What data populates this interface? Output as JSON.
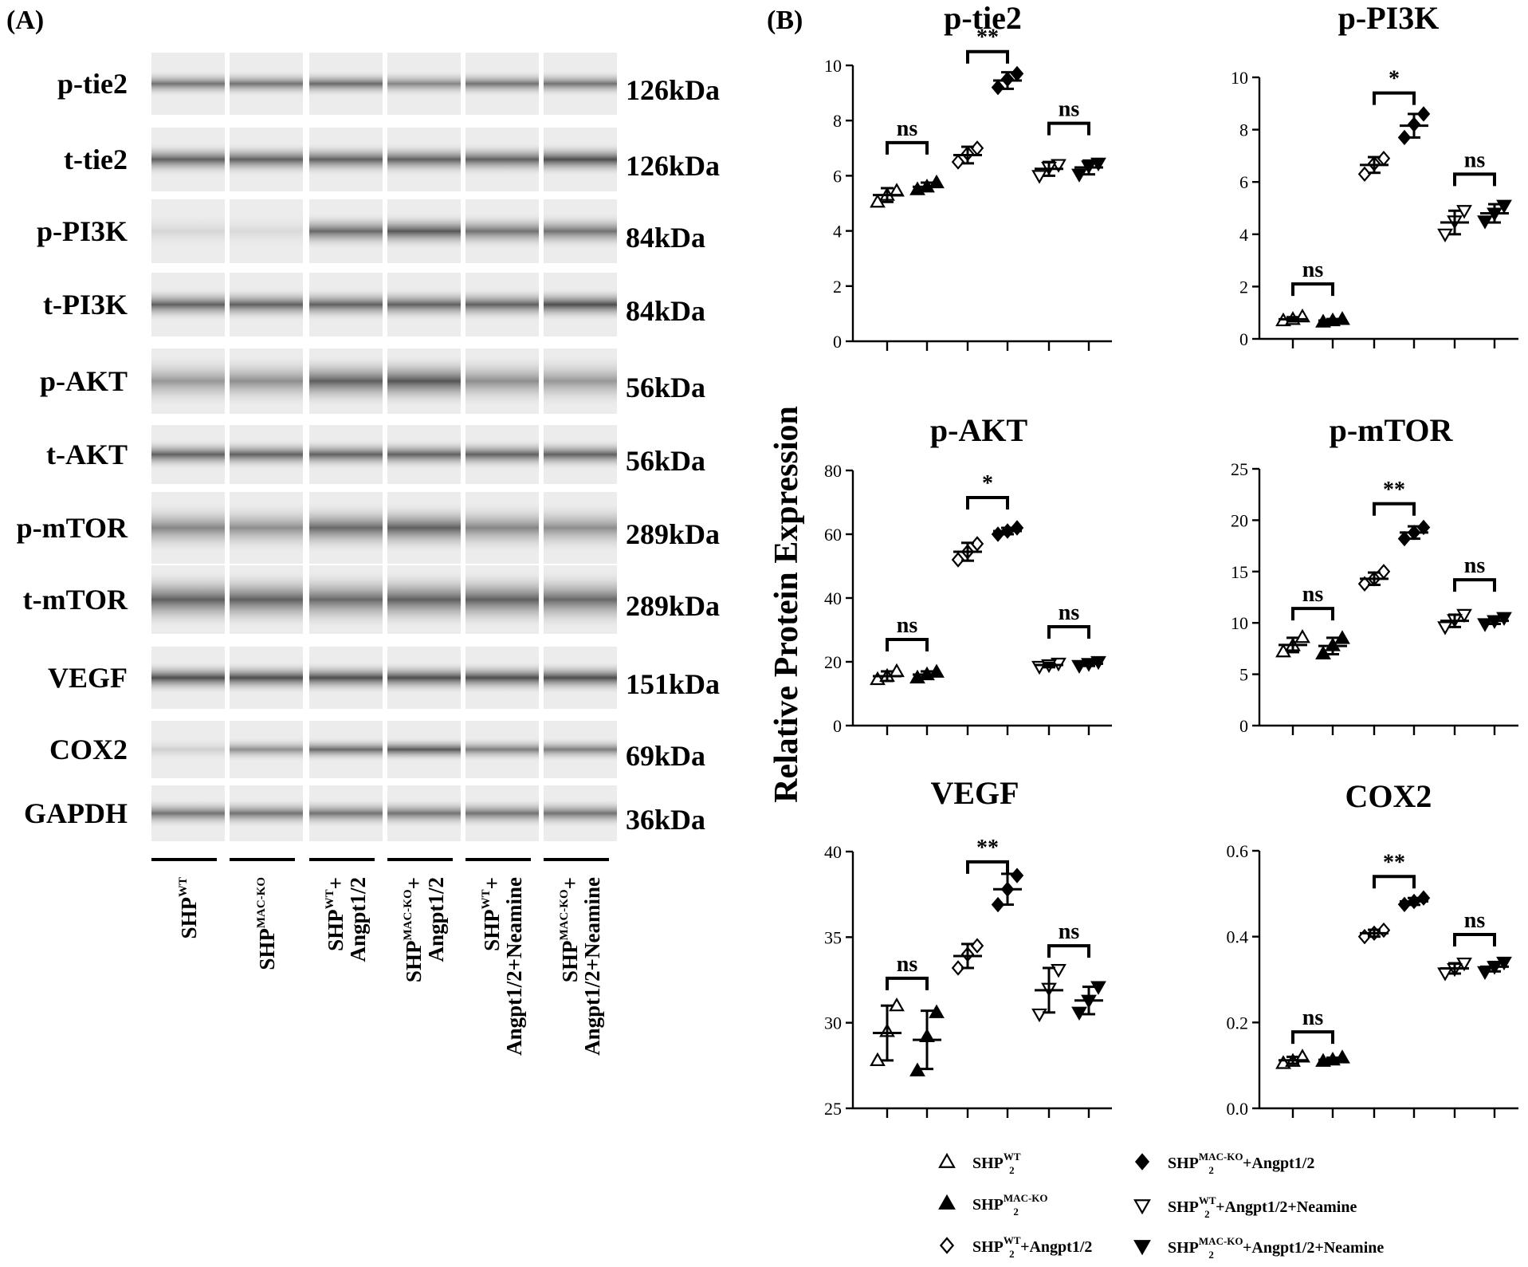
{
  "panel_a": {
    "label": "(A)",
    "rows": [
      {
        "name": "p-tie2",
        "kda": "126kDa"
      },
      {
        "name": "t-tie2",
        "kda": "126kDa"
      },
      {
        "name": "p-PI3K",
        "kda": "84kDa"
      },
      {
        "name": "t-PI3K",
        "kda": "84kDa"
      },
      {
        "name": "p-AKT",
        "kda": "56kDa"
      },
      {
        "name": "t-AKT",
        "kda": "56kDa"
      },
      {
        "name": "p-mTOR",
        "kda": "289kDa"
      },
      {
        "name": "t-mTOR",
        "kda": "289kDa"
      },
      {
        "name": "VEGF",
        "kda": "151kDa"
      },
      {
        "name": "COX2",
        "kda": "69kDa"
      },
      {
        "name": "GAPDH",
        "kda": "36kDa"
      }
    ],
    "lanes": [
      {
        "line1": "SHP",
        "sup1": "WT",
        "line1_suffix": "",
        "line2": ""
      },
      {
        "line1": "SHP",
        "sup1": "MAC-KO",
        "line1_suffix": "",
        "line2": ""
      },
      {
        "line1": "SHP",
        "sup1": "WT",
        "line1_suffix": "+",
        "line2": "Angpt1/2"
      },
      {
        "line1": "SHP",
        "sup1": "MAC-KO",
        "line1_suffix": "+",
        "line2": "Angpt1/2"
      },
      {
        "line1": "SHP",
        "sup1": "WT",
        "line1_suffix": "+",
        "line2": "Angpt1/2+Neamine"
      },
      {
        "line1": "SHP",
        "sup1": "MAC-KO",
        "line1_suffix": "+",
        "line2": "Angpt1/2+Neamine"
      }
    ]
  },
  "panel_b": {
    "label": "(B)",
    "y_axis_label": "Relative Protein Expression",
    "legend": [
      {
        "marker": "triangle-up-open",
        "text_main": "SHP",
        "sub": "2",
        "sup": "WT",
        "suffix": ""
      },
      {
        "marker": "triangle-up-filled",
        "text_main": "SHP",
        "sub": "2",
        "sup": "MAC-KO",
        "suffix": ""
      },
      {
        "marker": "diamond-open",
        "text_main": "SHP",
        "sub": "2",
        "sup": "WT",
        "suffix": "+Angpt1/2"
      },
      {
        "marker": "diamond-filled",
        "text_main": "SHP",
        "sub": "2",
        "sup": "MAC-KO",
        "suffix": "+Angpt1/2"
      },
      {
        "marker": "triangle-down-open",
        "text_main": "SHP",
        "sub": "2",
        "sup": "WT",
        "suffix": "+Angpt1/2+Neamine"
      },
      {
        "marker": "triangle-down-filled",
        "text_main": "SHP",
        "sub": "2",
        "sup": "MAC-KO",
        "suffix": "+Angpt1/2+Neamine"
      }
    ]
  },
  "chart_data": [
    {
      "type": "scatter",
      "title": "p-tie2",
      "ylim": [
        0,
        10
      ],
      "yticks": [
        "0",
        "2",
        "4",
        "6",
        "8",
        "10"
      ],
      "series": [
        {
          "name": "SHP2 WT",
          "marker": "triangle-up-open",
          "points": [
            5.05,
            5.45,
            5.3
          ],
          "mean": 5.3,
          "err": 0.25
        },
        {
          "name": "SHP2 MAC-KO",
          "marker": "triangle-up-filled",
          "points": [
            5.5,
            5.75,
            5.6
          ],
          "mean": 5.6,
          "err": 0.15
        },
        {
          "name": "SHP2 WT + Angpt1/2",
          "marker": "diamond-open",
          "points": [
            6.5,
            7.0,
            6.8
          ],
          "mean": 6.75,
          "err": 0.3
        },
        {
          "name": "SHP2 MAC-KO + Angpt1/2",
          "marker": "diamond-filled",
          "points": [
            9.2,
            9.7,
            9.5
          ],
          "mean": 9.45,
          "err": 0.3
        },
        {
          "name": "SHP2 WT + Angpt1/2 + Neamine",
          "marker": "triangle-down-open",
          "points": [
            6.0,
            6.4,
            6.3
          ],
          "mean": 6.25,
          "err": 0.25
        },
        {
          "name": "SHP2 MAC-KO + Angpt1/2 + Neamine",
          "marker": "triangle-down-filled",
          "points": [
            6.05,
            6.45,
            6.35
          ],
          "mean": 6.3,
          "err": 0.25
        }
      ],
      "significance": [
        {
          "pair": [
            0,
            1
          ],
          "label": "ns",
          "y": 7.2
        },
        {
          "pair": [
            2,
            3
          ],
          "label": "**",
          "y": 10.5
        },
        {
          "pair": [
            4,
            5
          ],
          "label": "ns",
          "y": 7.9
        }
      ]
    },
    {
      "type": "scatter",
      "title": "p-PI3K",
      "ylim": [
        0,
        10
      ],
      "yticks": [
        "0",
        "2",
        "4",
        "6",
        "8",
        "10"
      ],
      "series": [
        {
          "name": "SHP2 WT",
          "marker": "triangle-up-open",
          "points": [
            0.7,
            0.85,
            0.75
          ],
          "mean": 0.75,
          "err": 0.08
        },
        {
          "name": "SHP2 MAC-KO",
          "marker": "triangle-up-filled",
          "points": [
            0.65,
            0.75,
            0.7
          ],
          "mean": 0.7,
          "err": 0.06
        },
        {
          "name": "SHP2 WT + Angpt1/2",
          "marker": "diamond-open",
          "points": [
            6.3,
            6.9,
            6.7
          ],
          "mean": 6.65,
          "err": 0.3
        },
        {
          "name": "SHP2 MAC-KO + Angpt1/2",
          "marker": "diamond-filled",
          "points": [
            7.7,
            8.6,
            8.2
          ],
          "mean": 8.15,
          "err": 0.45
        },
        {
          "name": "SHP2 WT + Angpt1/2 + Neamine",
          "marker": "triangle-down-open",
          "points": [
            4.0,
            4.9,
            4.5
          ],
          "mean": 4.45,
          "err": 0.45
        },
        {
          "name": "SHP2 MAC-KO + Angpt1/2 + Neamine",
          "marker": "triangle-down-filled",
          "points": [
            4.5,
            5.1,
            4.8
          ],
          "mean": 4.8,
          "err": 0.35
        }
      ],
      "significance": [
        {
          "pair": [
            0,
            1
          ],
          "label": "ns",
          "y": 2.1
        },
        {
          "pair": [
            2,
            3
          ],
          "label": "*",
          "y": 9.4
        },
        {
          "pair": [
            4,
            5
          ],
          "label": "ns",
          "y": 6.3
        }
      ]
    },
    {
      "type": "scatter",
      "title": "p-AKT",
      "ylim": [
        0,
        80
      ],
      "yticks": [
        "0",
        "20",
        "40",
        "60",
        "80"
      ],
      "series": [
        {
          "name": "SHP2 WT",
          "marker": "triangle-up-open",
          "points": [
            14.5,
            17.0,
            15.5
          ],
          "mean": 15.5,
          "err": 1.5
        },
        {
          "name": "SHP2 MAC-KO",
          "marker": "triangle-up-filled",
          "points": [
            15.0,
            16.8,
            16.0
          ],
          "mean": 16.0,
          "err": 1.0
        },
        {
          "name": "SHP2 WT + Angpt1/2",
          "marker": "diamond-open",
          "points": [
            52.0,
            57.0,
            54.5
          ],
          "mean": 54.5,
          "err": 2.8
        },
        {
          "name": "SHP2 MAC-KO + Angpt1/2",
          "marker": "diamond-filled",
          "points": [
            60.0,
            62.0,
            61.0
          ],
          "mean": 61.0,
          "err": 1.0
        },
        {
          "name": "SHP2 WT + Angpt1/2 + Neamine",
          "marker": "triangle-down-open",
          "points": [
            18.5,
            19.5,
            19.0
          ],
          "mean": 19.0,
          "err": 0.7
        },
        {
          "name": "SHP2 MAC-KO + Angpt1/2 + Neamine",
          "marker": "triangle-down-filled",
          "points": [
            18.8,
            20.0,
            19.4
          ],
          "mean": 19.4,
          "err": 0.7
        }
      ],
      "significance": [
        {
          "pair": [
            0,
            1
          ],
          "label": "ns",
          "y": 27.0
        },
        {
          "pair": [
            2,
            3
          ],
          "label": "*",
          "y": 71.5
        },
        {
          "pair": [
            4,
            5
          ],
          "label": "ns",
          "y": 31.0
        }
      ]
    },
    {
      "type": "scatter",
      "title": "p-mTOR",
      "ylim": [
        0,
        25
      ],
      "yticks": [
        "0",
        "5",
        "10",
        "15",
        "20",
        "25"
      ],
      "series": [
        {
          "name": "SHP2 WT",
          "marker": "triangle-up-open",
          "points": [
            7.2,
            8.6,
            7.8
          ],
          "mean": 7.85,
          "err": 0.7
        },
        {
          "name": "SHP2 MAC-KO",
          "marker": "triangle-up-filled",
          "points": [
            7.0,
            8.5,
            7.8
          ],
          "mean": 7.75,
          "err": 0.8
        },
        {
          "name": "SHP2 WT + Angpt1/2",
          "marker": "diamond-open",
          "points": [
            13.8,
            15.0,
            14.3
          ],
          "mean": 14.3,
          "err": 0.6
        },
        {
          "name": "SHP2 MAC-KO + Angpt1/2",
          "marker": "diamond-filled",
          "points": [
            18.2,
            19.3,
            18.8
          ],
          "mean": 18.8,
          "err": 0.6
        },
        {
          "name": "SHP2 WT + Angpt1/2 + Neamine",
          "marker": "triangle-down-open",
          "points": [
            9.6,
            10.8,
            10.3
          ],
          "mean": 10.2,
          "err": 0.6
        },
        {
          "name": "SHP2 MAC-KO + Angpt1/2 + Neamine",
          "marker": "triangle-down-filled",
          "points": [
            9.9,
            10.5,
            10.2
          ],
          "mean": 10.2,
          "err": 0.3
        }
      ],
      "significance": [
        {
          "pair": [
            0,
            1
          ],
          "label": "ns",
          "y": 11.4
        },
        {
          "pair": [
            2,
            3
          ],
          "label": "**",
          "y": 21.6
        },
        {
          "pair": [
            4,
            5
          ],
          "label": "ns",
          "y": 14.2
        }
      ]
    },
    {
      "type": "scatter",
      "title": "VEGF",
      "ylim": [
        25,
        40
      ],
      "yticks": [
        "25",
        "30",
        "35",
        "40"
      ],
      "series": [
        {
          "name": "SHP2 WT",
          "marker": "triangle-up-open",
          "points": [
            27.8,
            31.0,
            29.5
          ],
          "mean": 29.4,
          "err": 1.6
        },
        {
          "name": "SHP2 MAC-KO",
          "marker": "triangle-up-filled",
          "points": [
            27.2,
            30.6,
            29.2
          ],
          "mean": 29.0,
          "err": 1.7
        },
        {
          "name": "SHP2 WT + Angpt1/2",
          "marker": "diamond-open",
          "points": [
            33.2,
            34.5,
            34.0
          ],
          "mean": 33.9,
          "err": 0.7
        },
        {
          "name": "SHP2 MAC-KO + Angpt1/2",
          "marker": "diamond-filled",
          "points": [
            36.9,
            38.6,
            37.8
          ],
          "mean": 37.8,
          "err": 0.9
        },
        {
          "name": "SHP2 WT + Angpt1/2 + Neamine",
          "marker": "triangle-down-open",
          "points": [
            30.5,
            33.1,
            32.0
          ],
          "mean": 31.9,
          "err": 1.3
        },
        {
          "name": "SHP2 MAC-KO + Angpt1/2 + Neamine",
          "marker": "triangle-down-filled",
          "points": [
            30.6,
            32.1,
            31.3
          ],
          "mean": 31.3,
          "err": 0.8
        }
      ],
      "significance": [
        {
          "pair": [
            0,
            1
          ],
          "label": "ns",
          "y": 32.6
        },
        {
          "pair": [
            2,
            3
          ],
          "label": "**",
          "y": 39.4
        },
        {
          "pair": [
            4,
            5
          ],
          "label": "ns",
          "y": 34.5
        }
      ]
    },
    {
      "type": "scatter",
      "title": "COX2",
      "ylim": [
        0.0,
        0.6
      ],
      "yticks": [
        "0.0",
        "0.2",
        "0.4",
        "0.6"
      ],
      "series": [
        {
          "name": "SHP2 WT",
          "marker": "triangle-up-open",
          "points": [
            0.105,
            0.12,
            0.11
          ],
          "mean": 0.112,
          "err": 0.008
        },
        {
          "name": "SHP2 MAC-KO",
          "marker": "triangle-up-filled",
          "points": [
            0.11,
            0.118,
            0.113
          ],
          "mean": 0.113,
          "err": 0.005
        },
        {
          "name": "SHP2 WT + Angpt1/2",
          "marker": "diamond-open",
          "points": [
            0.4,
            0.415,
            0.408
          ],
          "mean": 0.408,
          "err": 0.008
        },
        {
          "name": "SHP2 MAC-KO + Angpt1/2",
          "marker": "diamond-filled",
          "points": [
            0.475,
            0.49,
            0.482
          ],
          "mean": 0.482,
          "err": 0.008
        },
        {
          "name": "SHP2 WT + Angpt1/2 + Neamine",
          "marker": "triangle-down-open",
          "points": [
            0.315,
            0.338,
            0.325
          ],
          "mean": 0.326,
          "err": 0.012
        },
        {
          "name": "SHP2 MAC-KO + Angpt1/2 + Neamine",
          "marker": "triangle-down-filled",
          "points": [
            0.318,
            0.34,
            0.33
          ],
          "mean": 0.33,
          "err": 0.011
        }
      ],
      "significance": [
        {
          "pair": [
            0,
            1
          ],
          "label": "ns",
          "y": 0.178
        },
        {
          "pair": [
            2,
            3
          ],
          "label": "**",
          "y": 0.54
        },
        {
          "pair": [
            4,
            5
          ],
          "label": "ns",
          "y": 0.405
        }
      ]
    }
  ]
}
